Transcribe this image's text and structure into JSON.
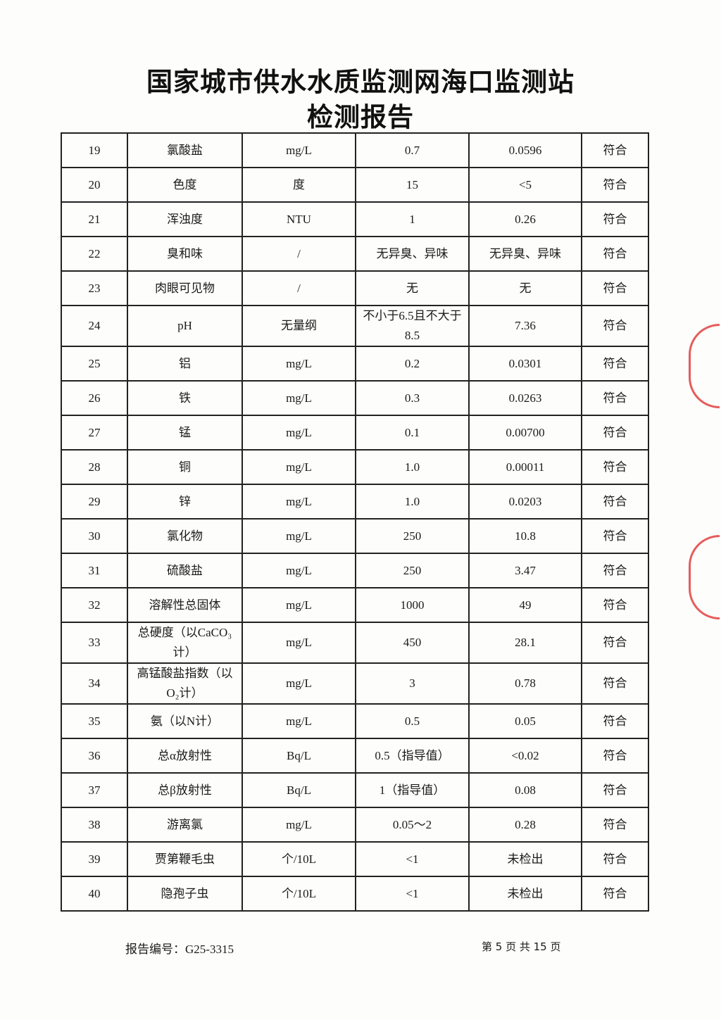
{
  "header": {
    "title_line1": "国家城市供水水质监测网海口监测站",
    "title_line2": "检测报告"
  },
  "stamp_color": "#dc2828",
  "table": {
    "rows": [
      [
        "19",
        "氯酸盐",
        "mg/L",
        "0.7",
        "0.0596",
        "符合"
      ],
      [
        "20",
        "色度",
        "度",
        "15",
        "<5",
        "符合"
      ],
      [
        "21",
        "浑浊度",
        "NTU",
        "1",
        "0.26",
        "符合"
      ],
      [
        "22",
        "臭和味",
        "/",
        "无异臭、异味",
        "无异臭、异味",
        "符合"
      ],
      [
        "23",
        "肉眼可见物",
        "/",
        "无",
        "无",
        "符合"
      ],
      [
        "24",
        "pH",
        "无量纲",
        "不小于6.5且不大于8.5",
        "7.36",
        "符合"
      ],
      [
        "25",
        "铝",
        "mg/L",
        "0.2",
        "0.0301",
        "符合"
      ],
      [
        "26",
        "铁",
        "mg/L",
        "0.3",
        "0.0263",
        "符合"
      ],
      [
        "27",
        "锰",
        "mg/L",
        "0.1",
        "0.00700",
        "符合"
      ],
      [
        "28",
        "铜",
        "mg/L",
        "1.0",
        "0.00011",
        "符合"
      ],
      [
        "29",
        "锌",
        "mg/L",
        "1.0",
        "0.0203",
        "符合"
      ],
      [
        "30",
        "氯化物",
        "mg/L",
        "250",
        "10.8",
        "符合"
      ],
      [
        "31",
        "硫酸盐",
        "mg/L",
        "250",
        "3.47",
        "符合"
      ],
      [
        "32",
        "溶解性总固体",
        "mg/L",
        "1000",
        "49",
        "符合"
      ],
      [
        "33",
        "总硬度（以CaCO₃计）",
        "mg/L",
        "450",
        "28.1",
        "符合"
      ],
      [
        "34",
        "高锰酸盐指数（以O₂计）",
        "mg/L",
        "3",
        "0.78",
        "符合"
      ],
      [
        "35",
        "氨（以N计）",
        "mg/L",
        "0.5",
        "0.05",
        "符合"
      ],
      [
        "36",
        "总α放射性",
        "Bq/L",
        "0.5（指导值）",
        "<0.02",
        "符合"
      ],
      [
        "37",
        "总β放射性",
        "Bq/L",
        "1（指导值）",
        "0.08",
        "符合"
      ],
      [
        "38",
        "游离氯",
        "mg/L",
        "0.05～2",
        "0.28",
        "符合"
      ],
      [
        "39",
        "贾第鞭毛虫",
        "个/10L",
        "<1",
        "未检出",
        "符合"
      ],
      [
        "40",
        "隐孢子虫",
        "个/10L",
        "<1",
        "未检出",
        "符合"
      ]
    ]
  },
  "footer": {
    "report_no": "报告编号：G25-3315",
    "page": "第 5 页  共 15 页"
  }
}
